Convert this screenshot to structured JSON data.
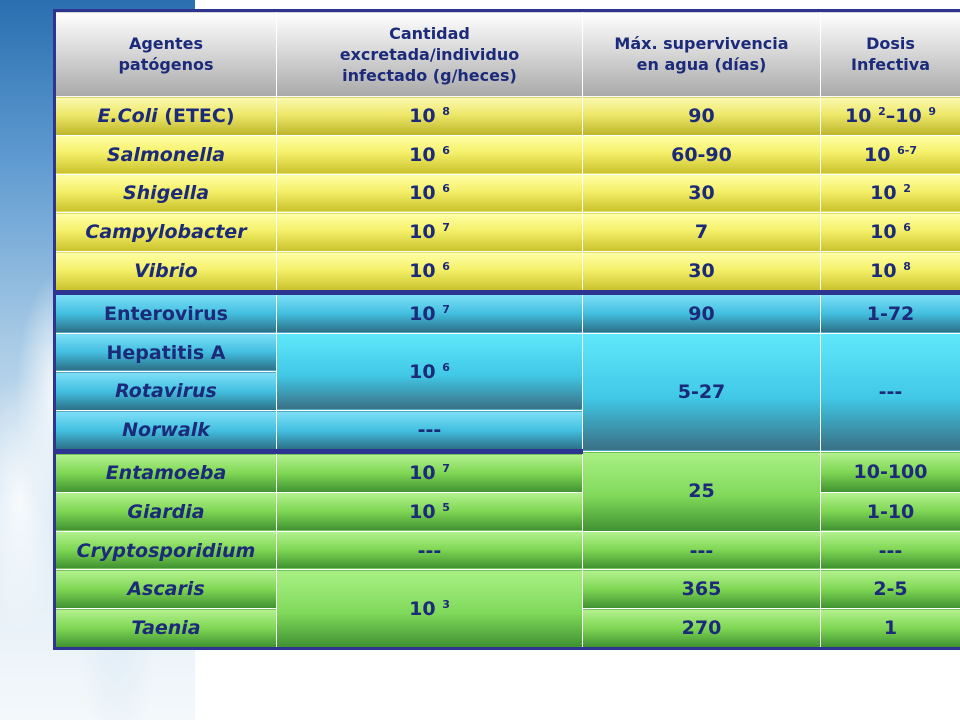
{
  "headers": {
    "agentes": [
      "Agentes",
      "patógenos"
    ],
    "cantidad": [
      "Cantidad",
      "excretada/individuo",
      "infectado (g/heces)"
    ],
    "supervivencia": [
      "Máx. supervivencia",
      "en agua (días)"
    ],
    "dosis": [
      "Dosis",
      "Infectiva"
    ]
  },
  "bacteria": [
    {
      "name_italic": "E.Coli",
      "name_rest": " (ETEC)",
      "cantidad_base": "10",
      "cantidad_exp": "8",
      "supervivencia": "90",
      "dosis_a_base": "10",
      "dosis_a_exp": "2",
      "dosis_mid": "–10",
      "dosis_b_exp": "9"
    },
    {
      "name": "Salmonella",
      "cantidad_base": "10",
      "cantidad_exp": "6",
      "supervivencia": "60-90",
      "dosis_base": "10",
      "dosis_exp": "6-7"
    },
    {
      "name": "Shigella",
      "cantidad_base": "10",
      "cantidad_exp": "6",
      "supervivencia": "30",
      "dosis_base": "10",
      "dosis_exp": "2"
    },
    {
      "name": "Campylobacter",
      "cantidad_base": "10",
      "cantidad_exp": "7",
      "supervivencia": "7",
      "dosis_base": "10",
      "dosis_exp": "6"
    },
    {
      "name": "Vibrio",
      "cantidad_base": "10",
      "cantidad_exp": "6",
      "supervivencia": "30",
      "dosis_base": "10",
      "dosis_exp": "8"
    }
  ],
  "virus": {
    "enterovirus": {
      "name": "Enterovirus",
      "cantidad_base": "10",
      "cantidad_exp": "7",
      "supervivencia": "90",
      "dosis": "1-72"
    },
    "hepatitis": {
      "name": "Hepatitis A"
    },
    "rotavirus": {
      "name": "Rotavirus"
    },
    "norwalk": {
      "name": "Norwalk",
      "cantidad": "---"
    },
    "shared_cantidad_base": "10",
    "shared_cantidad_exp": "6",
    "shared_supervivencia": "5-27",
    "shared_dosis": "---"
  },
  "parasites": {
    "entamoeba": {
      "name": "Entamoeba",
      "cantidad_base": "10",
      "cantidad_exp": "7",
      "dosis": "10-100"
    },
    "giardia": {
      "name": "Giardia",
      "cantidad_base": "10",
      "cantidad_exp": "5",
      "dosis": "1-10"
    },
    "shared_supervivencia": "25",
    "cryptosporidium": {
      "name": "Cryptosporidium",
      "cantidad": "---",
      "supervivencia": "---",
      "dosis": "---"
    },
    "ascaris": {
      "name": "Ascaris",
      "supervivencia": "365",
      "dosis": "2-5"
    },
    "taenia": {
      "name": "Taenia",
      "supervivencia": "270",
      "dosis": "1"
    },
    "shared_cantidad_base": "10",
    "shared_cantidad_exp": "3"
  }
}
